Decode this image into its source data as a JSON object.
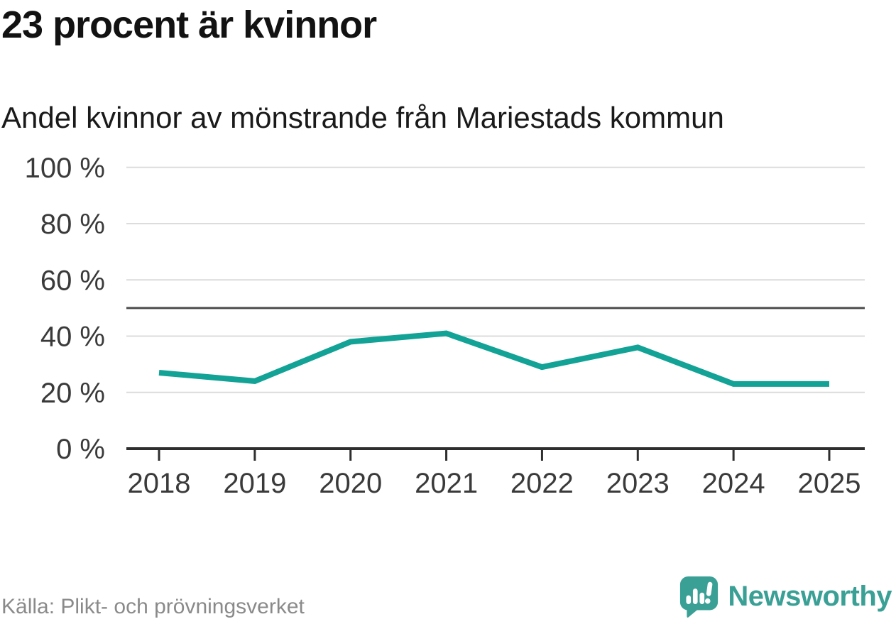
{
  "chart_data": {
    "type": "line",
    "title": "23 procent är kvinnor",
    "subtitle": "Andel kvinnor av mönstrande från Mariestads kommun",
    "categories": [
      "2018",
      "2019",
      "2020",
      "2021",
      "2022",
      "2023",
      "2024",
      "2025"
    ],
    "series": [
      {
        "name": "Andel kvinnor av mönstrande",
        "values": [
          27,
          24,
          38,
          41,
          29,
          36,
          23,
          23
        ]
      }
    ],
    "unit": "%",
    "ylim": [
      0,
      100
    ],
    "y_ticks": [
      0,
      20,
      40,
      60,
      80,
      100
    ],
    "y_tick_labels": [
      "0 %",
      "20 %",
      "40 %",
      "60 %",
      "80 %",
      "100 %"
    ],
    "reference_line": 50,
    "grid": "horizontal",
    "legend": "none",
    "line_color": "#12a296",
    "gridline_color": "#dcdcdc",
    "reference_line_color": "#4d4d4d",
    "axis_color": "#2e2e2e",
    "source": "Källa: Plikt- och prövningsverket"
  },
  "branding": {
    "logo_text": "Newsworthy",
    "logo_color": "#3aa096"
  }
}
